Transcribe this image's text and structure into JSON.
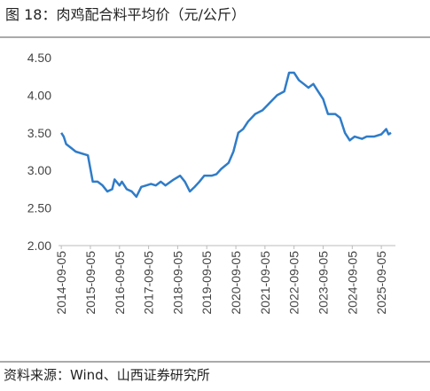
{
  "chart_data": {
    "type": "line",
    "title": "图 18：肉鸡配合料平均价（元/公斤）",
    "source": "资料来源：Wind、山西证券研究所",
    "x": [
      "2014-09-05",
      "2014-10-05",
      "2014-11-05",
      "2015-01-05",
      "2015-03-05",
      "2015-06-05",
      "2015-08-05",
      "2015-10-05",
      "2015-12-05",
      "2016-02-05",
      "2016-04-05",
      "2016-06-05",
      "2016-07-05",
      "2016-09-05",
      "2016-10-05",
      "2016-12-05",
      "2017-02-05",
      "2017-04-05",
      "2017-06-05",
      "2017-08-05",
      "2017-10-05",
      "2017-12-05",
      "2018-02-05",
      "2018-04-05",
      "2018-07-05",
      "2018-10-05",
      "2018-12-05",
      "2019-02-05",
      "2019-04-05",
      "2019-06-05",
      "2019-08-05",
      "2019-11-05",
      "2020-01-05",
      "2020-03-05",
      "2020-06-05",
      "2020-08-05",
      "2020-10-05",
      "2020-12-05",
      "2021-02-05",
      "2021-05-05",
      "2021-08-05",
      "2021-11-05",
      "2022-02-05",
      "2022-05-05",
      "2022-07-05",
      "2022-09-05",
      "2022-11-05",
      "2023-01-05",
      "2023-03-05",
      "2023-05-05",
      "2023-07-05",
      "2023-09-05",
      "2023-11-05",
      "2024-02-05",
      "2024-04-05",
      "2024-06-05",
      "2024-08-05",
      "2024-10-05",
      "2025-01-05",
      "2025-03-05",
      "2025-06-05",
      "2025-09-05",
      "2025-11-05",
      "2025-12-05",
      "2026-01-05"
    ],
    "series": [
      {
        "name": "肉鸡配合料平均价",
        "color": "#2f7cc8",
        "values": [
          3.5,
          3.45,
          3.35,
          3.3,
          3.25,
          3.22,
          3.2,
          2.85,
          2.85,
          2.8,
          2.72,
          2.75,
          2.88,
          2.8,
          2.85,
          2.75,
          2.72,
          2.65,
          2.78,
          2.8,
          2.82,
          2.8,
          2.85,
          2.8,
          2.87,
          2.93,
          2.85,
          2.72,
          2.78,
          2.85,
          2.93,
          2.93,
          2.95,
          3.02,
          3.1,
          3.25,
          3.5,
          3.55,
          3.65,
          3.75,
          3.8,
          3.9,
          4.0,
          4.05,
          4.3,
          4.3,
          4.2,
          4.15,
          4.1,
          4.15,
          4.05,
          3.95,
          3.75,
          3.75,
          3.7,
          3.5,
          3.4,
          3.45,
          3.42,
          3.45,
          3.45,
          3.48,
          3.55,
          3.48,
          3.5
        ]
      }
    ],
    "xlim": [
      "2014-08-01",
      "2026-03-01"
    ],
    "xticks": [
      "2014-09-05",
      "2015-09-05",
      "2016-09-05",
      "2017-09-05",
      "2018-09-05",
      "2019-09-05",
      "2020-09-05",
      "2021-09-05",
      "2022-09-05",
      "2023-09-05",
      "2024-09-05",
      "2025-09-05"
    ],
    "ylim": [
      2.0,
      4.5
    ],
    "yticks": [
      {
        "value": 2.0,
        "label": "2.00"
      },
      {
        "value": 2.5,
        "label": "2.50"
      },
      {
        "value": 3.0,
        "label": "3.00"
      },
      {
        "value": 3.5,
        "label": "3.50"
      },
      {
        "value": 4.0,
        "label": "4.00"
      },
      {
        "value": 4.5,
        "label": "4.50"
      }
    ],
    "grid": false
  }
}
